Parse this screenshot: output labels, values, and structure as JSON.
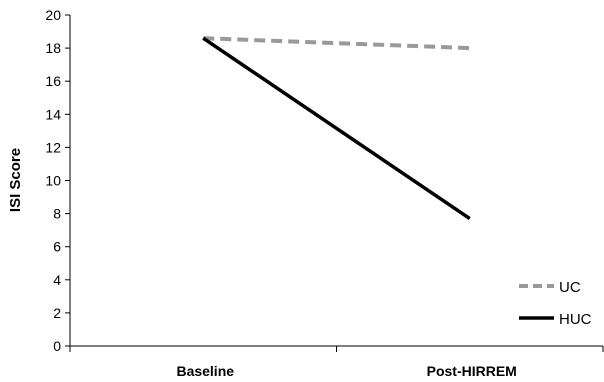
{
  "chart_data": {
    "type": "line",
    "title": "",
    "xlabel": "",
    "ylabel": "ISI Score",
    "categories": [
      "Baseline",
      "Post-HIRREM"
    ],
    "ylim": [
      0,
      20
    ],
    "yticks": [
      0,
      2,
      4,
      6,
      8,
      10,
      12,
      14,
      16,
      18,
      20
    ],
    "grid": false,
    "legend_position": "bottom-right",
    "series": [
      {
        "name": "UC",
        "values": [
          18.6,
          18.0
        ],
        "color": "#999999",
        "style": "dashed"
      },
      {
        "name": "HUC",
        "values": [
          18.6,
          7.7
        ],
        "color": "#000000",
        "style": "solid"
      }
    ]
  }
}
